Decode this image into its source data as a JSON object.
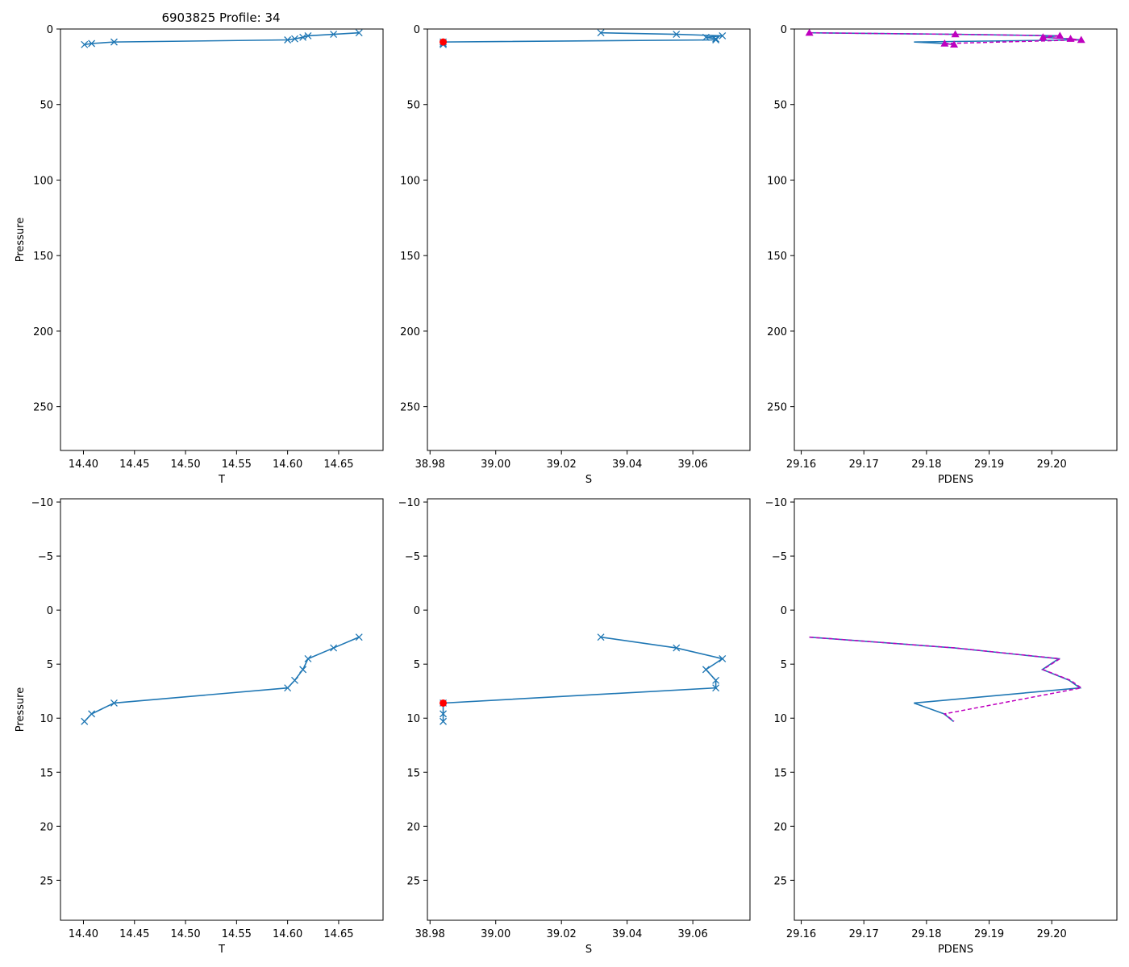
{
  "figure": {
    "title": "6903825 Profile: 34",
    "colors": {
      "line": "#1f77b4",
      "flag": "#ff0000",
      "density": "#bf00bf",
      "axes": "#000000"
    }
  },
  "chart_data": [
    {
      "id": "top-T",
      "type": "line",
      "xlabel": "T",
      "ylabel": "Pressure",
      "xlim": [
        14.3775,
        14.6935
      ],
      "ylim": [
        279,
        0
      ],
      "y_inverted": true,
      "xticks": [
        14.4,
        14.45,
        14.5,
        14.55,
        14.6,
        14.65
      ],
      "xtick_labels": [
        "14.40",
        "14.45",
        "14.50",
        "14.55",
        "14.60",
        "14.65"
      ],
      "yticks": [
        0,
        50,
        100,
        150,
        200,
        250
      ],
      "ytick_labels": [
        "0",
        "50",
        "100",
        "150",
        "200",
        "250"
      ],
      "series": [
        {
          "name": "T",
          "marker": "x",
          "x": [
            14.67,
            14.645,
            14.62,
            14.615,
            14.607,
            14.6,
            14.43,
            14.408,
            14.401
          ],
          "y": [
            2.5,
            3.5,
            4.5,
            5.5,
            6.5,
            7.2,
            8.6,
            9.6,
            10.3
          ]
        }
      ]
    },
    {
      "id": "top-S",
      "type": "line",
      "xlabel": "S",
      "ylabel": "",
      "xlim": [
        38.9792,
        39.0774
      ],
      "ylim": [
        279,
        0
      ],
      "y_inverted": true,
      "xticks": [
        38.98,
        39.0,
        39.02,
        39.04,
        39.06
      ],
      "xtick_labels": [
        "38.98",
        "39.00",
        "39.02",
        "39.04",
        "39.06"
      ],
      "yticks": [
        0,
        50,
        100,
        150,
        200,
        250
      ],
      "ytick_labels": [
        "0",
        "50",
        "100",
        "150",
        "200",
        "250"
      ],
      "series": [
        {
          "name": "S",
          "marker": "x",
          "x": [
            39.032,
            39.055,
            39.069,
            39.064,
            39.067,
            39.067,
            38.984,
            38.984,
            38.984
          ],
          "y": [
            2.5,
            3.5,
            4.5,
            5.5,
            6.5,
            7.2,
            8.6,
            9.6,
            10.3
          ]
        }
      ],
      "flagged": {
        "x": [
          38.984
        ],
        "y": [
          8.6
        ]
      }
    },
    {
      "id": "top-PDENS",
      "type": "line",
      "xlabel": "PDENS",
      "ylabel": "",
      "xlim": [
        29.1589,
        29.2104
      ],
      "ylim": [
        279,
        0
      ],
      "y_inverted": true,
      "xticks": [
        29.16,
        29.17,
        29.18,
        29.19,
        29.2
      ],
      "xtick_labels": [
        "29.16",
        "29.17",
        "29.18",
        "29.19",
        "29.20"
      ],
      "yticks": [
        0,
        50,
        100,
        150,
        200,
        250
      ],
      "ytick_labels": [
        "0",
        "50",
        "100",
        "150",
        "200",
        "250"
      ],
      "series": [
        {
          "name": "PDENS",
          "marker": "none",
          "x": [
            29.1613,
            29.1845,
            29.2011,
            29.1985,
            29.2028,
            29.2045,
            29.178,
            29.1828,
            29.1843
          ],
          "y": [
            2.5,
            3.5,
            4.5,
            5.5,
            6.5,
            7.2,
            8.6,
            9.6,
            10.3
          ]
        }
      ],
      "density_points": {
        "x": [
          29.1613,
          29.1846,
          29.2013,
          29.1986,
          29.203,
          29.2047,
          29.1829,
          29.1844
        ],
        "y": [
          2.5,
          3.5,
          4.5,
          5.5,
          6.5,
          7.2,
          9.6,
          10.3
        ]
      }
    },
    {
      "id": "bottom-T",
      "type": "line",
      "xlabel": "T",
      "ylabel": "Pressure",
      "xlim": [
        14.3775,
        14.6935
      ],
      "ylim": [
        28.7,
        -10.3
      ],
      "y_inverted": true,
      "xticks": [
        14.4,
        14.45,
        14.5,
        14.55,
        14.6,
        14.65
      ],
      "xtick_labels": [
        "14.40",
        "14.45",
        "14.50",
        "14.55",
        "14.60",
        "14.65"
      ],
      "yticks": [
        -10,
        -5,
        0,
        5,
        10,
        15,
        20,
        25
      ],
      "ytick_labels": [
        "−10",
        "−5",
        "0",
        "5",
        "10",
        "15",
        "20",
        "25"
      ],
      "series": [
        {
          "name": "T",
          "marker": "x",
          "x": [
            14.67,
            14.645,
            14.62,
            14.615,
            14.607,
            14.6,
            14.43,
            14.408,
            14.401
          ],
          "y": [
            2.5,
            3.5,
            4.5,
            5.5,
            6.5,
            7.2,
            8.6,
            9.6,
            10.3
          ]
        }
      ]
    },
    {
      "id": "bottom-S",
      "type": "line",
      "xlabel": "S",
      "ylabel": "",
      "xlim": [
        38.9792,
        39.0774
      ],
      "ylim": [
        28.7,
        -10.3
      ],
      "y_inverted": true,
      "xticks": [
        38.98,
        39.0,
        39.02,
        39.04,
        39.06
      ],
      "xtick_labels": [
        "38.98",
        "39.00",
        "39.02",
        "39.04",
        "39.06"
      ],
      "yticks": [
        -10,
        -5,
        0,
        5,
        10,
        15,
        20,
        25
      ],
      "ytick_labels": [
        "−10",
        "−5",
        "0",
        "5",
        "10",
        "15",
        "20",
        "25"
      ],
      "series": [
        {
          "name": "S",
          "marker": "x",
          "x": [
            39.032,
            39.055,
            39.069,
            39.064,
            39.067,
            39.067,
            38.984,
            38.984,
            38.984
          ],
          "y": [
            2.5,
            3.5,
            4.5,
            5.5,
            6.5,
            7.2,
            8.6,
            9.6,
            10.3
          ]
        }
      ],
      "flagged": {
        "x": [
          38.984
        ],
        "y": [
          8.6
        ]
      }
    },
    {
      "id": "bottom-PDENS",
      "type": "line",
      "xlabel": "PDENS",
      "ylabel": "",
      "xlim": [
        29.1589,
        29.2104
      ],
      "ylim": [
        28.7,
        -10.3
      ],
      "y_inverted": true,
      "xticks": [
        29.16,
        29.17,
        29.18,
        29.19,
        29.2
      ],
      "xtick_labels": [
        "29.16",
        "29.17",
        "29.18",
        "29.19",
        "29.20"
      ],
      "yticks": [
        -10,
        -5,
        0,
        5,
        10,
        15,
        20,
        25
      ],
      "ytick_labels": [
        "−10",
        "−5",
        "0",
        "5",
        "10",
        "15",
        "20",
        "25"
      ],
      "series": [
        {
          "name": "PDENS",
          "marker": "none",
          "x": [
            29.1613,
            29.1845,
            29.2011,
            29.1985,
            29.2028,
            29.2045,
            29.178,
            29.1828,
            29.1843
          ],
          "y": [
            2.5,
            3.5,
            4.5,
            5.5,
            6.5,
            7.2,
            8.6,
            9.6,
            10.3
          ]
        }
      ],
      "density_line": {
        "x": [
          29.1613,
          29.1846,
          29.2013,
          29.1986,
          29.203,
          29.2047,
          29.1829,
          29.1844
        ],
        "y": [
          2.5,
          3.5,
          4.5,
          5.5,
          6.5,
          7.2,
          9.6,
          10.3
        ]
      }
    }
  ]
}
